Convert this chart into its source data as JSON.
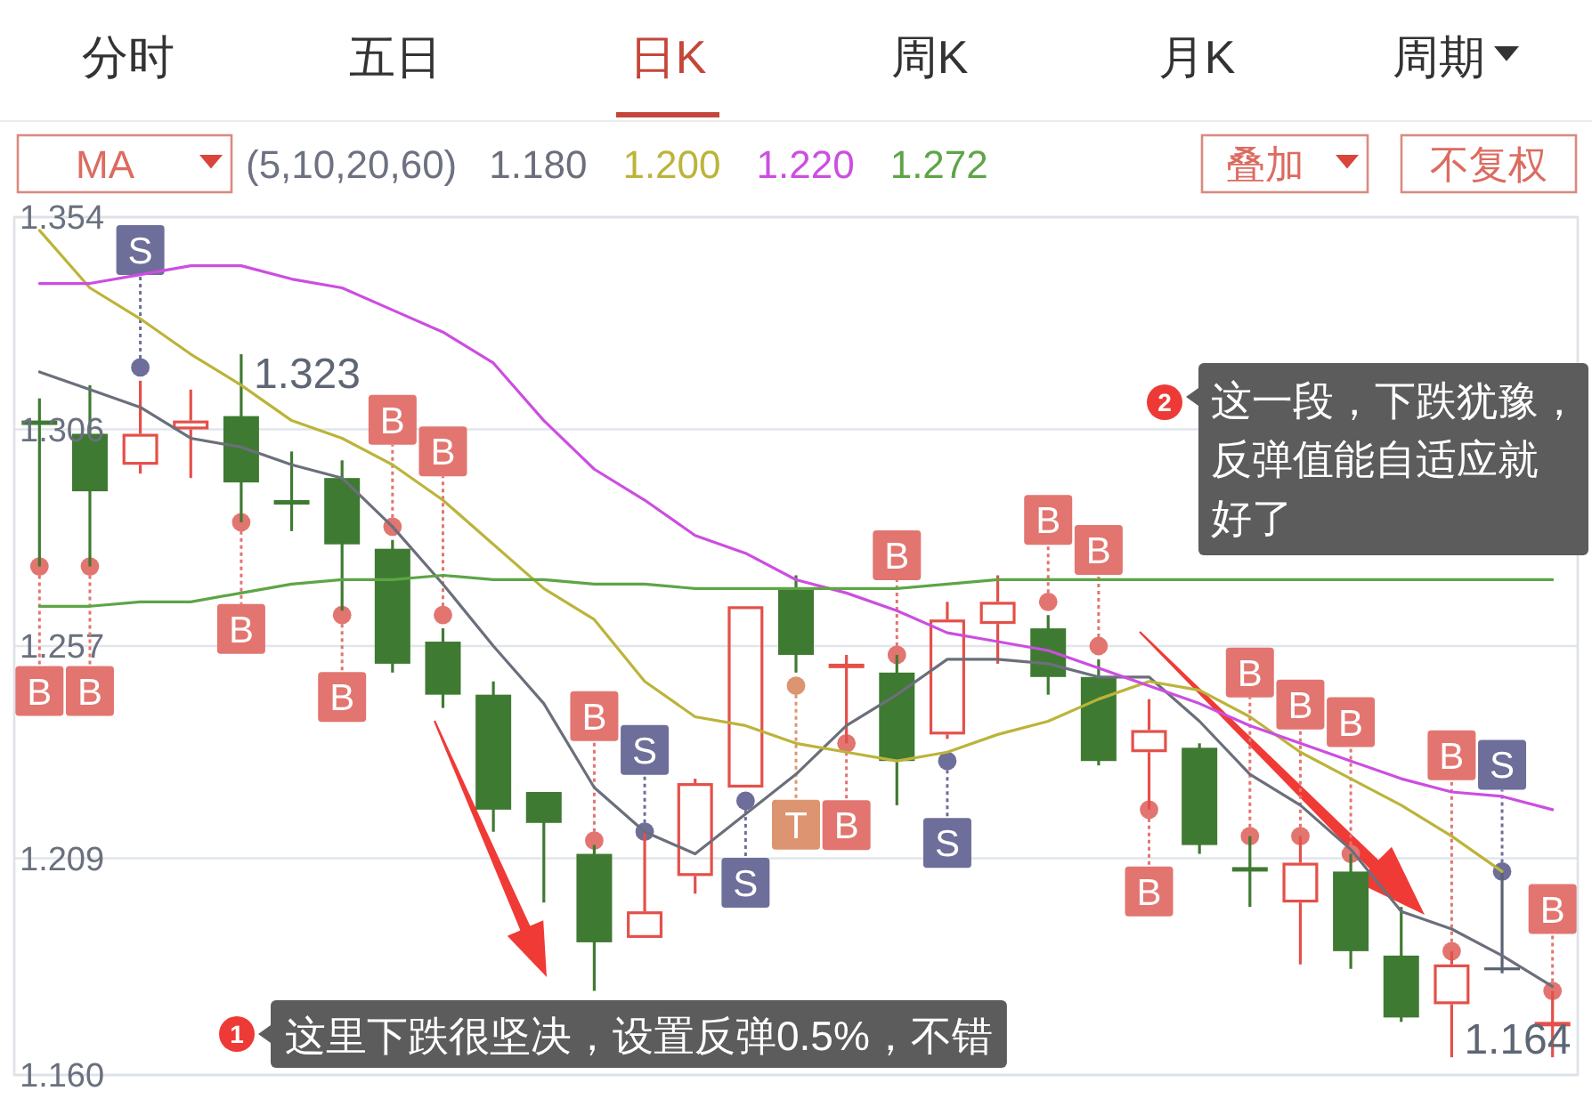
{
  "chart_data": {
    "type": "candlestick",
    "categories": [
      null,
      null,
      null,
      null,
      null,
      null,
      null,
      null,
      null,
      null,
      null,
      null,
      null,
      null,
      null,
      null,
      null,
      null,
      null,
      null,
      null,
      null,
      null,
      null,
      null,
      null,
      null,
      null,
      null,
      null,
      null
    ],
    "ohlc": [
      [
        1.308,
        1.313,
        1.275,
        1.307
      ],
      [
        1.305,
        1.316,
        1.275,
        1.292
      ],
      [
        1.298,
        1.317,
        1.296,
        1.305
      ],
      [
        1.306,
        1.315,
        1.295,
        1.308
      ],
      [
        1.309,
        1.323,
        1.285,
        1.294
      ],
      [
        1.29,
        1.301,
        1.283,
        1.289
      ],
      [
        1.295,
        1.299,
        1.265,
        1.28
      ],
      [
        1.279,
        1.281,
        1.251,
        1.253
      ],
      [
        1.258,
        1.261,
        1.243,
        1.246
      ],
      [
        1.246,
        1.249,
        1.215,
        1.22
      ],
      [
        1.224,
        1.224,
        1.199,
        1.217
      ],
      [
        1.21,
        1.212,
        1.179,
        1.19
      ],
      [
        1.191,
        1.215,
        1.191,
        1.197
      ],
      [
        1.205,
        1.227,
        1.201,
        1.226
      ],
      [
        1.225,
        1.266,
        1.225,
        1.266
      ],
      [
        1.27,
        1.273,
        1.251,
        1.255
      ],
      [
        1.252,
        1.255,
        1.235,
        1.253
      ],
      [
        1.251,
        1.255,
        1.221,
        1.231
      ],
      [
        1.237,
        1.267,
        1.236,
        1.263
      ],
      [
        1.262,
        1.273,
        1.253,
        1.267
      ],
      [
        1.261,
        1.264,
        1.246,
        1.25
      ],
      [
        1.25,
        1.254,
        1.23,
        1.231
      ],
      [
        1.233,
        1.245,
        1.22,
        1.238
      ],
      [
        1.234,
        1.235,
        1.21,
        1.212
      ],
      [
        1.207,
        1.214,
        1.198,
        1.206
      ],
      [
        1.199,
        1.214,
        1.185,
        1.208
      ],
      [
        1.206,
        1.21,
        1.184,
        1.188
      ],
      [
        1.187,
        1.198,
        1.172,
        1.173
      ],
      [
        1.176,
        1.188,
        1.164,
        1.185
      ],
      [
        1.184,
        1.206,
        1.183,
        1.184
      ],
      [
        1.171,
        1.179,
        1.164,
        1.172
      ]
    ],
    "colors": [
      "#3f7a32",
      "#3f7a32",
      "#e4504a",
      "#e4504a",
      "#3f7a32",
      "#3f7a32",
      "#3f7a32",
      "#3f7a32",
      "#3f7a32",
      "#3f7a32",
      "#3f7a32",
      "#3f7a32",
      "#e4504a",
      "#e4504a",
      "#e4504a",
      "#3f7a32",
      "#e4504a",
      "#3f7a32",
      "#e4504a",
      "#e4504a",
      "#3f7a32",
      "#3f7a32",
      "#e4504a",
      "#3f7a32",
      "#3f7a32",
      "#e4504a",
      "#3f7a32",
      "#3f7a32",
      "#e4504a",
      "#5b6272",
      "#e4504a"
    ],
    "series": [
      {
        "type": "line",
        "name": "1.180",
        "color": "#6b6f7b",
        "values": [
          1.319,
          1.315,
          1.311,
          1.304,
          1.302,
          1.298,
          1.295,
          1.284,
          1.271,
          1.257,
          1.244,
          1.225,
          1.215,
          1.21,
          1.219,
          1.228,
          1.239,
          1.246,
          1.254,
          1.254,
          1.253,
          1.25,
          1.25,
          1.24,
          1.228,
          1.221,
          1.211,
          1.197,
          1.193,
          1.187,
          1.18
        ]
      },
      {
        "type": "line",
        "name": "1.200",
        "color": "#bcb43a",
        "values": [
          1.351,
          1.338,
          1.331,
          1.323,
          1.316,
          1.308,
          1.304,
          1.298,
          1.29,
          1.28,
          1.27,
          1.263,
          1.249,
          1.241,
          1.239,
          1.235,
          1.233,
          1.231,
          1.233,
          1.237,
          1.24,
          1.245,
          1.249,
          1.247,
          1.241,
          1.233,
          1.227,
          1.221,
          1.214,
          1.206,
          null
        ]
      },
      {
        "type": "line",
        "name": "1.220",
        "color": "#cc4ee0",
        "values": [
          1.339,
          1.339,
          1.341,
          1.343,
          1.343,
          1.34,
          1.338,
          1.333,
          1.328,
          1.321,
          1.308,
          1.297,
          1.29,
          1.282,
          1.278,
          1.272,
          1.269,
          1.265,
          1.26,
          1.258,
          1.256,
          1.252,
          1.248,
          1.244,
          1.239,
          1.235,
          1.231,
          1.227,
          1.224,
          1.223,
          1.22
        ]
      },
      {
        "type": "line",
        "name": "1.272",
        "color": "#5da546",
        "values": [
          1.266,
          1.266,
          1.267,
          1.267,
          1.269,
          1.271,
          1.272,
          1.272,
          1.273,
          1.272,
          1.272,
          1.271,
          1.271,
          1.27,
          1.27,
          1.27,
          1.27,
          1.27,
          1.271,
          1.272,
          1.272,
          1.272,
          1.272,
          1.272,
          1.272,
          1.272,
          1.272,
          1.272,
          1.272,
          1.272,
          1.272
        ]
      },
      {
        "type": "scatter",
        "color": "#e27570",
        "marker": "circle",
        "values": [
          1.275,
          1.275,
          null,
          null,
          1.285,
          null,
          1.264,
          1.284,
          1.264,
          null,
          null,
          1.213,
          null,
          null,
          null,
          null,
          1.235,
          1.255,
          null,
          null,
          1.267,
          1.257,
          1.22,
          null,
          1.214,
          1.214,
          1.21,
          null,
          1.188,
          null,
          1.179
        ],
        "value_labels": [
          "B",
          "B",
          null,
          null,
          "B",
          null,
          "B",
          "B",
          "B",
          null,
          null,
          "B",
          null,
          null,
          null,
          null,
          "B",
          "B",
          null,
          null,
          "B",
          "B",
          "B",
          null,
          "B",
          "B",
          "B",
          null,
          "B",
          null,
          "B"
        ]
      },
      {
        "type": "scatter",
        "color": "#6e6e9a",
        "marker": "circle",
        "values": [
          null,
          null,
          1.32,
          null,
          null,
          null,
          null,
          null,
          null,
          null,
          null,
          null,
          1.215,
          null,
          1.222,
          null,
          null,
          null,
          1.231,
          null,
          null,
          null,
          null,
          null,
          null,
          null,
          null,
          null,
          null,
          1.206,
          null
        ],
        "value_labels": [
          null,
          null,
          "S",
          null,
          null,
          null,
          null,
          null,
          null,
          null,
          null,
          null,
          "S",
          null,
          "S",
          null,
          null,
          null,
          "S",
          null,
          null,
          null,
          null,
          null,
          null,
          null,
          null,
          null,
          null,
          "S",
          null
        ]
      },
      {
        "type": "scatter",
        "color": "#dc9570",
        "marker": "circle",
        "values": [
          null,
          null,
          null,
          null,
          null,
          null,
          null,
          null,
          null,
          null,
          null,
          null,
          null,
          null,
          null,
          1.248,
          null,
          null,
          null,
          null,
          null,
          null,
          null,
          null,
          null,
          null,
          null,
          null,
          null,
          null,
          null
        ],
        "value_labels": [
          null,
          null,
          null,
          null,
          null,
          null,
          null,
          null,
          null,
          null,
          null,
          null,
          null,
          null,
          null,
          "T",
          null,
          null,
          null,
          null,
          null,
          null,
          null,
          null,
          null,
          null,
          null,
          null,
          null,
          null,
          null
        ]
      }
    ],
    "ylim": [
      1.16,
      1.354
    ],
    "yticks": [
      1.354,
      1.306,
      1.257,
      1.209,
      {
        "value": 1.16,
        "label": "1.160"
      }
    ],
    "grid": "y",
    "tick_labels": "y",
    "legend": "top",
    "legend_title": "(5,10,20,60)",
    "annotations": [
      "分时",
      "五日",
      "日K",
      "周K",
      "月K",
      "周期",
      "MA",
      "叠加",
      "不复权",
      "1.323",
      "1.164",
      "1",
      "这里下跌很坚决，设置反弹0.5%，不错",
      "2",
      "这一段，下跌犹豫，反弹值能自适应就好了"
    ]
  }
}
